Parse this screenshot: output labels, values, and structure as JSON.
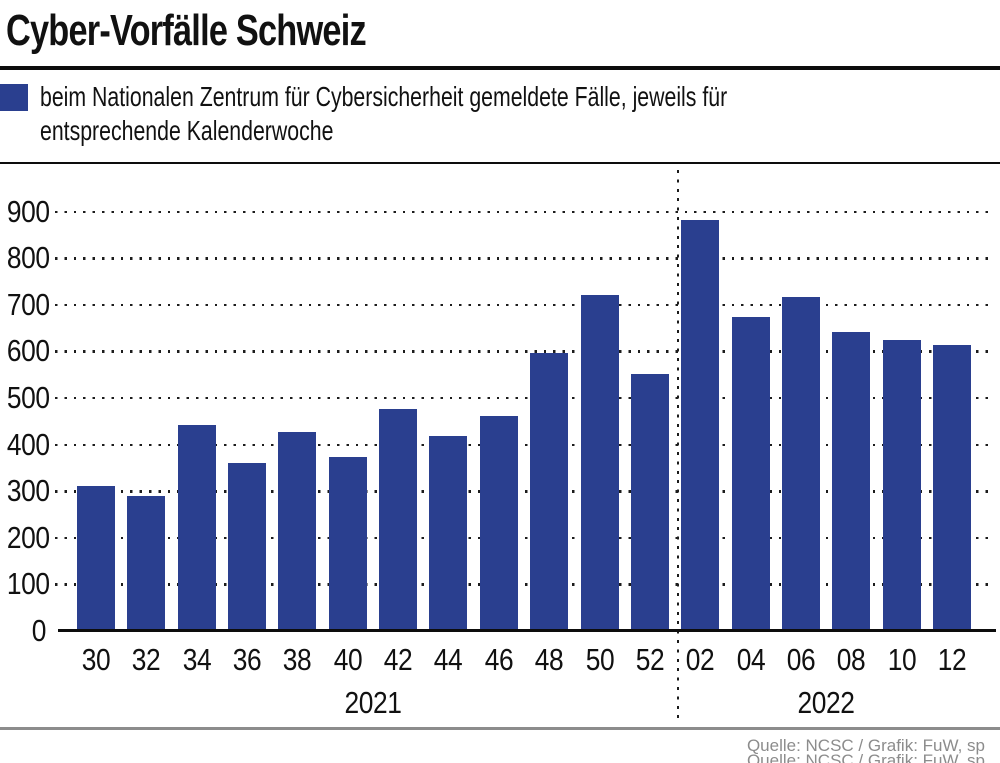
{
  "header": {
    "title": "Cyber-Vorfälle Schweiz"
  },
  "legend": {
    "line1": "beim Nationalen Zentrum für Cybersicherheit gemeldete Fälle, jeweils für",
    "line2": "entsprechende Kalenderwoche",
    "swatch_color": "#2a3f8f"
  },
  "footer": {
    "source": "Quelle: NCSC / Grafik: FuW, sp"
  },
  "colors": {
    "bar": "#2a3f8f",
    "text": "#111111",
    "muted": "#8c8c8c"
  },
  "chart_data": {
    "type": "bar",
    "title": "Cyber-Vorfälle Schweiz",
    "subtitle": "beim Nationalen Zentrum für Cybersicherheit gemeldete Fälle, jeweils für entsprechende Kalenderwoche",
    "xlabel": "Kalenderwoche",
    "ylabel": "",
    "categories": [
      "30",
      "32",
      "34",
      "36",
      "38",
      "40",
      "42",
      "44",
      "46",
      "48",
      "50",
      "52",
      "02",
      "04",
      "06",
      "08",
      "10",
      "12"
    ],
    "values": [
      312,
      290,
      443,
      361,
      427,
      373,
      476,
      418,
      461,
      596,
      722,
      551,
      883,
      673,
      717,
      642,
      625,
      614
    ],
    "year_groups": [
      {
        "label": "2021",
        "from": 0,
        "to": 11
      },
      {
        "label": "2022",
        "from": 12,
        "to": 17
      }
    ],
    "divider_after_index": 11,
    "ylim": [
      0,
      900
    ],
    "ytick_step": 100,
    "grid": "dotted horizontal gridlines",
    "legend_position": "top-left above chart",
    "bar_color": "#2a3f8f"
  }
}
